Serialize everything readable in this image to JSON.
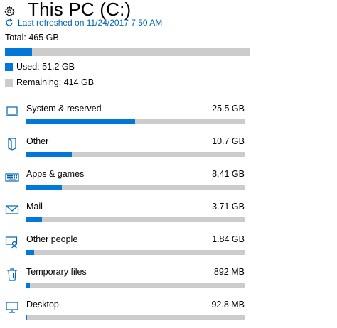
{
  "header": {
    "title": "This PC (C:)",
    "refresh_text": "Last refreshed on 11/24/2017 7:50 AM"
  },
  "summary": {
    "total": "Total: 465 GB",
    "used_fraction": 0.11,
    "used": "Used: 51.2 GB",
    "remaining": "Remaining: 414 GB",
    "used_color": "#0078d7",
    "remaining_color": "#cccccc"
  },
  "categories": [
    {
      "label": "System & reserved",
      "size": "25.5 GB",
      "fraction": 0.498,
      "icon": "laptop-icon"
    },
    {
      "label": "Other",
      "size": "10.7 GB",
      "fraction": 0.209,
      "icon": "other-icon"
    },
    {
      "label": "Apps & games",
      "size": "8.41 GB",
      "fraction": 0.164,
      "icon": "keyboard-icon"
    },
    {
      "label": "Mail",
      "size": "3.71 GB",
      "fraction": 0.072,
      "icon": "mail-icon"
    },
    {
      "label": "Other people",
      "size": "1.84 GB",
      "fraction": 0.036,
      "icon": "other-people-icon"
    },
    {
      "label": "Temporary files",
      "size": "892 MB",
      "fraction": 0.017,
      "icon": "trash-icon"
    },
    {
      "label": "Desktop",
      "size": "92.8 MB",
      "fraction": 0.002,
      "icon": "monitor-icon"
    }
  ]
}
